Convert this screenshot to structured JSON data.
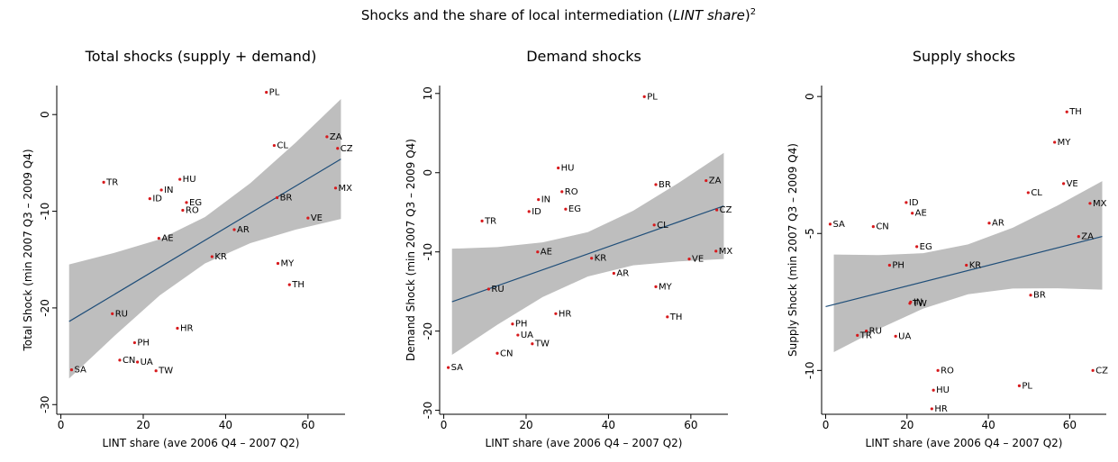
{
  "title": {
    "text": "Shocks and the share of local intermediation (",
    "italic": "LINT share",
    "close": ")",
    "note": "2"
  },
  "chart_data": [
    {
      "type": "scatter",
      "title": "Total shocks (supply + demand)",
      "x_label": "LINT share (ave 2006 Q4 – 2007 Q2)",
      "y_label": "Total Shock (min 2007 Q3 – 2009 Q4)",
      "xlim": [
        -1,
        69
      ],
      "ylim": [
        -31,
        3
      ],
      "xticks": [
        0,
        20,
        40,
        60
      ],
      "yticks": [
        0,
        -10,
        -20,
        -30
      ],
      "color": "#d7191c",
      "fit_color": "#1f4e79",
      "band_color": "#bebebe",
      "labels": [
        "PL",
        "CL",
        "ZA",
        "CZ",
        "TR",
        "HU",
        "IN",
        "ID",
        "EG",
        "RO",
        "BR",
        "MX",
        "VE",
        "AE",
        "AR",
        "KR",
        "MY",
        "TH",
        "RU",
        "HR",
        "PH",
        "CN",
        "UA",
        "TW",
        "SA"
      ],
      "x": [
        49.9,
        51.8,
        64.6,
        67.2,
        10.4,
        28.9,
        24.4,
        21.6,
        30.5,
        29.6,
        52.5,
        66.7,
        60.0,
        23.8,
        42.1,
        36.7,
        52.7,
        55.5,
        12.5,
        28.3,
        17.9,
        14.3,
        18.6,
        23.1,
        2.6
      ],
      "y": [
        2.3,
        -3.2,
        -2.3,
        -3.5,
        -7.0,
        -6.7,
        -7.8,
        -8.7,
        -9.1,
        -9.9,
        -8.6,
        -7.6,
        -10.7,
        -12.8,
        -11.9,
        -14.7,
        -15.4,
        -17.6,
        -20.6,
        -22.1,
        -23.6,
        -25.4,
        -25.6,
        -26.5,
        -26.4
      ],
      "fit": {
        "x": [
          2,
          68
        ],
        "y": [
          -21.4,
          -4.6
        ]
      },
      "band": {
        "x": [
          2,
          13,
          24,
          35,
          46,
          57,
          68
        ],
        "lower": [
          -27.3,
          -22.9,
          -18.7,
          -15.4,
          -13.3,
          -11.9,
          -10.8
        ],
        "upper": [
          -15.5,
          -14.3,
          -12.9,
          -10.6,
          -7.1,
          -2.9,
          1.6
        ]
      }
    },
    {
      "type": "scatter",
      "title": "Demand shocks",
      "x_label": "LINT share (ave 2006 Q4 – 2007 Q2)",
      "y_label": "Demand Shock (min 2007 Q3 – 2009 Q4)",
      "xlim": [
        -1,
        69
      ],
      "ylim": [
        -30.5,
        11
      ],
      "xticks": [
        0,
        20,
        40,
        60
      ],
      "yticks": [
        10,
        0,
        -10,
        -20,
        -30
      ],
      "color": "#d7191c",
      "fit_color": "#1f4e79",
      "band_color": "#bebebe",
      "labels": [
        "PL",
        "HU",
        "BR",
        "ZA",
        "IN",
        "RO",
        "ID",
        "EG",
        "CZ",
        "TR",
        "CL",
        "AE",
        "MX",
        "VE",
        "KR",
        "AR",
        "RU",
        "MY",
        "HR",
        "TH",
        "PH",
        "UA",
        "TW",
        "CN",
        "SA"
      ],
      "x": [
        48.7,
        27.8,
        51.5,
        63.7,
        23.0,
        28.7,
        20.7,
        29.6,
        66.3,
        9.3,
        51.1,
        22.8,
        66.1,
        59.6,
        35.9,
        41.3,
        10.9,
        51.5,
        27.2,
        54.3,
        16.7,
        18.0,
        21.5,
        13.0,
        1.1
      ],
      "y": [
        9.6,
        0.6,
        -1.5,
        -1.0,
        -3.4,
        -2.4,
        -4.9,
        -4.6,
        -4.7,
        -6.1,
        -6.6,
        -10.0,
        -9.9,
        -10.9,
        -10.8,
        -12.7,
        -14.7,
        -14.4,
        -17.8,
        -18.2,
        -19.1,
        -20.5,
        -21.6,
        -22.8,
        -24.6
      ],
      "fit": {
        "x": [
          2,
          68
        ],
        "y": [
          -16.3,
          -4.2
        ]
      },
      "band": {
        "x": [
          2,
          13,
          24,
          35,
          46,
          57,
          68
        ],
        "lower": [
          -23.0,
          -19.2,
          -15.7,
          -13.1,
          -11.7,
          -11.2,
          -10.9
        ],
        "upper": [
          -9.6,
          -9.4,
          -8.8,
          -7.5,
          -4.8,
          -1.3,
          2.5
        ]
      }
    },
    {
      "type": "scatter",
      "title": "Supply shocks",
      "x_label": "LINT share (ave 2006 Q4 – 2007 Q2)",
      "y_label": "Supply Shock (min 2007 Q3 – 2009 Q4)",
      "xlim": [
        -1,
        69
      ],
      "ylim": [
        -11.6,
        0.4
      ],
      "xticks": [
        0,
        20,
        40,
        60
      ],
      "yticks": [
        0,
        -5,
        -10
      ],
      "color": "#d7191c",
      "fit_color": "#1f4e79",
      "band_color": "#bebebe",
      "labels": [
        "TH",
        "MY",
        "VE",
        "MX",
        "CL",
        "ID",
        "AE",
        "SA",
        "CN",
        "AR",
        "ZA",
        "EG",
        "PH",
        "KR",
        "BR",
        "IN",
        "TW",
        "RU",
        "TR",
        "UA",
        "RO",
        "CZ",
        "PL",
        "HU",
        "HR"
      ],
      "x": [
        59.3,
        56.3,
        58.5,
        65.0,
        49.8,
        19.8,
        21.3,
        1.1,
        11.7,
        40.2,
        62.2,
        22.4,
        15.7,
        34.6,
        50.4,
        20.9,
        20.7,
        10.0,
        7.8,
        17.2,
        27.6,
        65.7,
        47.6,
        26.5,
        26.1
      ],
      "y": [
        -0.56,
        -1.67,
        -3.18,
        -3.9,
        -3.51,
        -3.87,
        -4.26,
        -4.66,
        -4.75,
        -4.62,
        -5.11,
        -5.48,
        -6.16,
        -6.16,
        -7.25,
        -7.5,
        -7.55,
        -8.56,
        -8.72,
        -8.75,
        -10.0,
        -10.0,
        -10.56,
        -10.72,
        -11.4
      ],
      "fit": {
        "x": [
          0,
          68
        ],
        "y": [
          -7.67,
          -5.11
        ]
      },
      "band": {
        "x": [
          2,
          13,
          24,
          35,
          46,
          57,
          68
        ],
        "lower": [
          -9.33,
          -8.49,
          -7.74,
          -7.22,
          -7.01,
          -7.0,
          -7.05
        ],
        "upper": [
          -5.77,
          -5.79,
          -5.72,
          -5.4,
          -4.79,
          -3.98,
          -3.09
        ]
      }
    }
  ]
}
